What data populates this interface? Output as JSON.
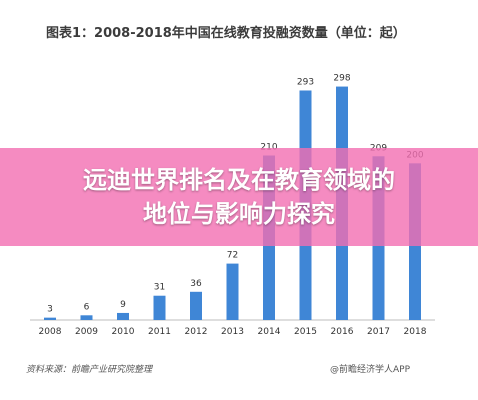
{
  "header": {
    "title": "图表1：2008-2018年中国在线教育投融资数量（单位：起）"
  },
  "footer": {
    "source": "资料来源：前瞻产业研究院整理",
    "app": "@前瞻经济学人APP"
  },
  "banner": {
    "line1": "远迪世界排名及在教育领域的",
    "line2": "地位与影响力探究"
  },
  "colors": {
    "bar": "#3f86d6",
    "banner": "#f36eb2"
  },
  "chart_data": {
    "type": "bar",
    "title": "图表1：2008-2018年中国在线教育投融资数量（单位：起）",
    "categories": [
      "2008",
      "2009",
      "2010",
      "2011",
      "2012",
      "2013",
      "2014",
      "2015",
      "2016",
      "2017",
      "2018"
    ],
    "values": [
      3,
      6,
      9,
      31,
      36,
      72,
      210,
      293,
      298,
      209,
      200
    ],
    "xlabel": "",
    "ylabel": "",
    "ylim": [
      0,
      300
    ],
    "grid": false,
    "legend": "none"
  }
}
